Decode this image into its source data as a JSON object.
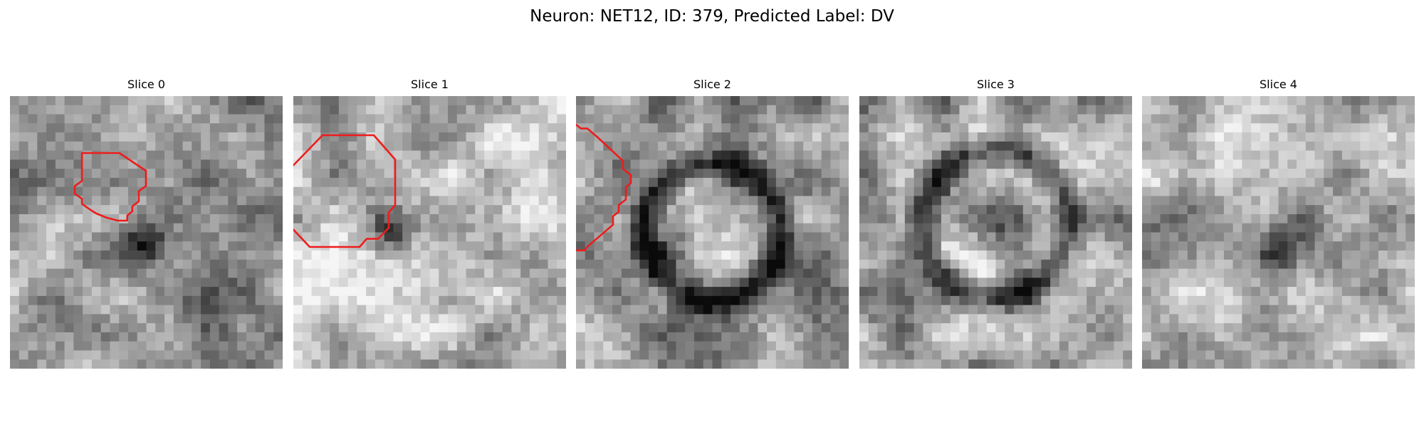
{
  "figure": {
    "title": "Neuron: NET12, ID: 379, Predicted Label: DV"
  },
  "panels": [
    {
      "title": "Slice 0",
      "seed": 11,
      "image": "grayscale-noise-patch"
    },
    {
      "title": "Slice 1",
      "seed": 23,
      "image": "grayscale-noise-patch"
    },
    {
      "title": "Slice 2",
      "seed": 37,
      "image": "grayscale-noise-patch"
    },
    {
      "title": "Slice 3",
      "seed": 53,
      "image": "grayscale-noise-patch"
    },
    {
      "title": "Slice 4",
      "seed": 71,
      "image": "grayscale-noise-patch"
    }
  ],
  "colors": {
    "contour": "#ee1c1c"
  }
}
